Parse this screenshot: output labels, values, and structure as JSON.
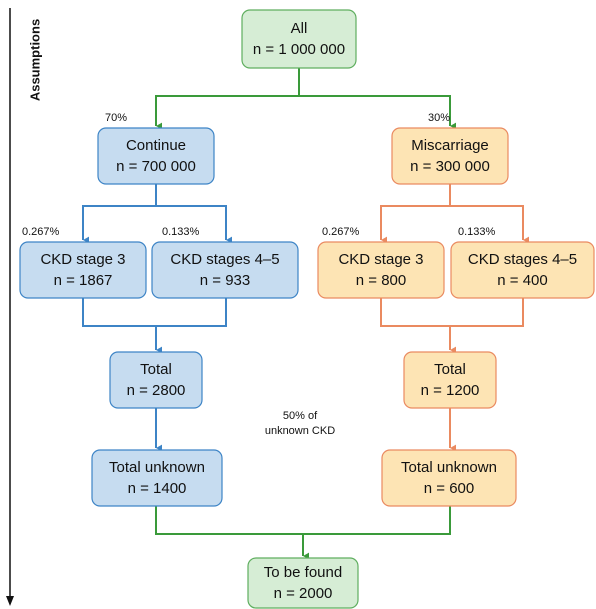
{
  "axis_label": "Assumptions",
  "nodes": [
    {
      "label": "All",
      "n": "n = 1 000 000"
    },
    {
      "label": "Continue",
      "n": "n = 700 000"
    },
    {
      "label": "Miscarriage",
      "n": "n = 300 000"
    },
    {
      "label": "CKD stage 3",
      "n": "n = 1867"
    },
    {
      "label": "CKD stages 4–5",
      "n": "n = 933"
    },
    {
      "label": "CKD stage 3",
      "n": "n = 800"
    },
    {
      "label": "CKD stages 4–5",
      "n": "n = 400"
    },
    {
      "label": "Total",
      "n": "n = 2800"
    },
    {
      "label": "Total",
      "n": "n = 1200"
    },
    {
      "label": "Total unknown",
      "n": "n = 1400"
    },
    {
      "label": "Total unknown",
      "n": "n = 600"
    },
    {
      "label": "To be found",
      "n": "n = 2000"
    }
  ],
  "edge_labels": [
    "70%",
    "30%",
    "0.267%",
    "0.133%",
    "0.267%",
    "0.133%"
  ],
  "note": [
    "50% of",
    "unknown CKD"
  ]
}
